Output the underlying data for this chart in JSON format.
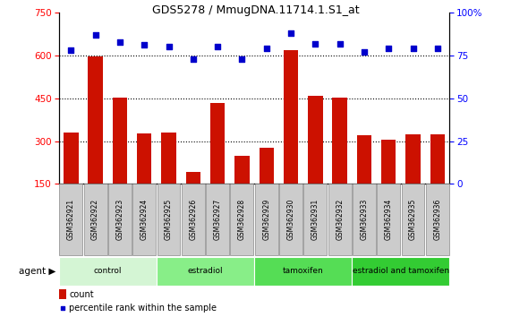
{
  "title": "GDS5278 / MmugDNA.11714.1.S1_at",
  "samples": [
    "GSM362921",
    "GSM362922",
    "GSM362923",
    "GSM362924",
    "GSM362925",
    "GSM362926",
    "GSM362927",
    "GSM362928",
    "GSM362929",
    "GSM362930",
    "GSM362931",
    "GSM362932",
    "GSM362933",
    "GSM362934",
    "GSM362935",
    "GSM362936"
  ],
  "counts": [
    330,
    598,
    452,
    328,
    330,
    193,
    435,
    248,
    278,
    618,
    458,
    452,
    322,
    305,
    325,
    325
  ],
  "percentiles": [
    78,
    87,
    83,
    81,
    80,
    73,
    80,
    73,
    79,
    88,
    82,
    82,
    77,
    79,
    79,
    79
  ],
  "groups": [
    {
      "label": "control",
      "start": 0,
      "end": 4,
      "color": "#d4f5d4"
    },
    {
      "label": "estradiol",
      "start": 4,
      "end": 8,
      "color": "#88ee88"
    },
    {
      "label": "tamoxifen",
      "start": 8,
      "end": 12,
      "color": "#55dd55"
    },
    {
      "label": "estradiol and tamoxifen",
      "start": 12,
      "end": 16,
      "color": "#33cc33"
    }
  ],
  "ylim_left": [
    150,
    750
  ],
  "ylim_right": [
    0,
    100
  ],
  "yticks_left": [
    150,
    300,
    450,
    600,
    750
  ],
  "yticks_right": [
    0,
    25,
    50,
    75,
    100
  ],
  "bar_color": "#cc1100",
  "dot_color": "#0000cc",
  "bar_bottom": 150,
  "xlabel": "agent",
  "legend_count": "count",
  "legend_pct": "percentile rank within the sample",
  "grid_lines": [
    300,
    450,
    600
  ]
}
